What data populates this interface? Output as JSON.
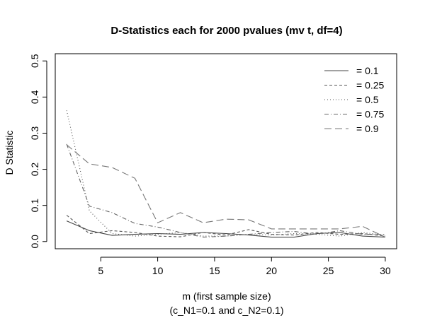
{
  "chart_data": {
    "type": "line",
    "title": "D-Statistics each for 2000 pvalues (mv t, df=4)",
    "xlabel": "m (first sample size)",
    "xlabel_line2": "(c_N1=0.1 and c_N2=0.1)",
    "ylabel": "D Statistic",
    "xlim": [
      2,
      30
    ],
    "ylim": [
      0,
      0.5
    ],
    "x_ticks": [
      5,
      10,
      15,
      20,
      25,
      30
    ],
    "y_ticks": [
      0.0,
      0.1,
      0.2,
      0.3,
      0.4,
      0.5
    ],
    "x_tick_labels": [
      "5",
      "10",
      "15",
      "20",
      "25",
      "30"
    ],
    "y_tick_labels": [
      "0.0",
      "0.1",
      "0.2",
      "0.3",
      "0.4",
      "0.5"
    ],
    "legend_position": "top-right",
    "grid": false,
    "x": [
      2,
      4,
      6,
      8,
      10,
      12,
      14,
      16,
      18,
      20,
      22,
      24,
      26,
      28,
      30
    ],
    "series": [
      {
        "name": "= 0.1",
        "dash": "",
        "color": "#444444",
        "values": [
          0.057,
          0.03,
          0.017,
          0.02,
          0.022,
          0.02,
          0.025,
          0.022,
          0.018,
          0.012,
          0.012,
          0.022,
          0.025,
          0.015,
          0.012
        ]
      },
      {
        "name": "= 0.25",
        "dash": "4,3",
        "color": "#555555",
        "values": [
          0.073,
          0.022,
          0.03,
          0.025,
          0.015,
          0.013,
          0.025,
          0.018,
          0.033,
          0.02,
          0.018,
          0.025,
          0.02,
          0.022,
          0.015
        ]
      },
      {
        "name": "= 0.5",
        "dash": "1,3",
        "color": "#555555",
        "values": [
          0.363,
          0.085,
          0.022,
          0.015,
          0.02,
          0.025,
          0.015,
          0.015,
          0.02,
          0.018,
          0.022,
          0.02,
          0.015,
          0.025,
          0.018
        ]
      },
      {
        "name": "= 0.75",
        "dash": "6,3,1,3",
        "color": "#666666",
        "values": [
          0.27,
          0.098,
          0.08,
          0.05,
          0.04,
          0.025,
          0.012,
          0.015,
          0.02,
          0.025,
          0.028,
          0.02,
          0.03,
          0.02,
          0.02
        ]
      },
      {
        "name": "= 0.9",
        "dash": "10,5",
        "color": "#777777",
        "values": [
          0.268,
          0.215,
          0.205,
          0.175,
          0.052,
          0.08,
          0.052,
          0.062,
          0.06,
          0.035,
          0.035,
          0.035,
          0.035,
          0.042,
          0.012
        ]
      }
    ]
  }
}
